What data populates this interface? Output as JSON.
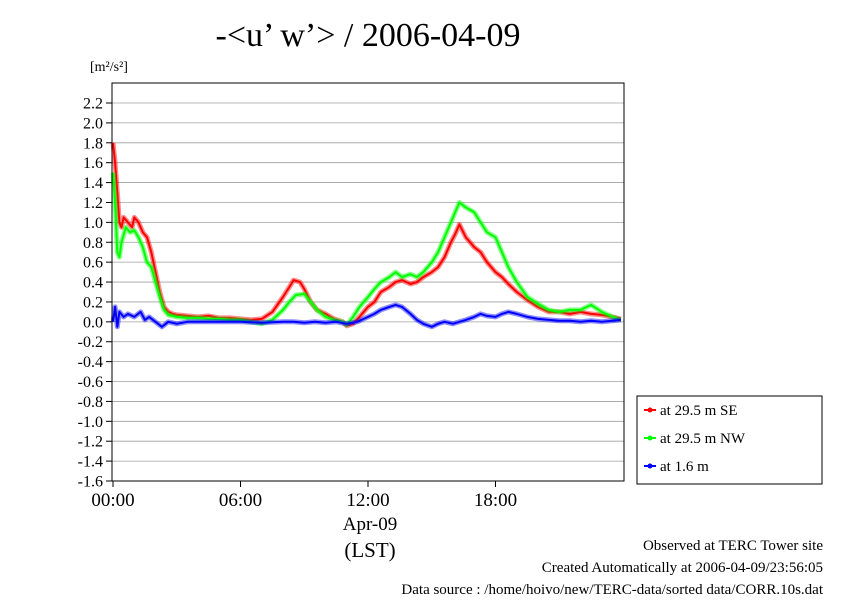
{
  "chart_data": {
    "type": "line",
    "title": "-<u’ w’> / 2006-04-09",
    "ylabel_unit": "[m²/s²]",
    "ylim": [
      -1.6,
      2.3
    ],
    "yticks": [
      2.2,
      2.0,
      1.8,
      1.6,
      1.4,
      1.2,
      1.0,
      0.8,
      0.6,
      0.4,
      0.2,
      0.0,
      -0.2,
      -0.4,
      -0.6,
      -0.8,
      -1.0,
      -1.2,
      -1.4,
      -1.6
    ],
    "ytick_labels": [
      "2.2",
      "2.0",
      "1.8",
      "1.6",
      "1.4",
      "1.2",
      "1.0",
      "0.8",
      "0.6",
      "0.4",
      "0.2",
      "0.0",
      "-0.2",
      "-0.4",
      "-0.6",
      "-0.8",
      "-1.0",
      "-1.2",
      "-1.4",
      "-1.6"
    ],
    "xlim": [
      0,
      24
    ],
    "xticks": [
      0,
      6,
      12,
      18
    ],
    "xtick_labels": [
      "00:00",
      "06:00",
      "12:00",
      "18:00"
    ],
    "x_date_label": "Apr-09",
    "x_unit_label": "(LST)",
    "grid": "horizontal",
    "legend_placement": "right",
    "series": [
      {
        "name": "at 29.5 m SE",
        "color": "#ff0000",
        "x": [
          0.0,
          0.1,
          0.2,
          0.3,
          0.4,
          0.5,
          0.7,
          0.9,
          1.0,
          1.2,
          1.4,
          1.6,
          1.8,
          2.0,
          2.2,
          2.4,
          2.6,
          2.8,
          3.0,
          3.5,
          4.0,
          4.5,
          5.0,
          5.5,
          6.0,
          6.5,
          7.0,
          7.5,
          8.0,
          8.3,
          8.5,
          8.8,
          9.0,
          9.3,
          9.6,
          10.0,
          10.4,
          10.8,
          11.0,
          11.3,
          11.6,
          12.0,
          12.3,
          12.6,
          13.0,
          13.3,
          13.6,
          14.0,
          14.3,
          14.6,
          15.0,
          15.3,
          15.6,
          15.9,
          16.1,
          16.3,
          16.6,
          17.0,
          17.3,
          17.6,
          18.0,
          18.3,
          18.6,
          19.0,
          19.5,
          20.0,
          20.5,
          21.0,
          21.5,
          22.0,
          22.5,
          23.0,
          23.5,
          23.9
        ],
        "values": [
          1.8,
          1.6,
          1.3,
          1.0,
          0.95,
          1.05,
          1.0,
          0.95,
          1.05,
          1.0,
          0.9,
          0.85,
          0.7,
          0.5,
          0.3,
          0.15,
          0.1,
          0.08,
          0.07,
          0.06,
          0.05,
          0.06,
          0.04,
          0.04,
          0.03,
          0.02,
          0.03,
          0.1,
          0.25,
          0.35,
          0.42,
          0.4,
          0.33,
          0.2,
          0.12,
          0.08,
          0.03,
          0.0,
          -0.04,
          -0.02,
          0.05,
          0.15,
          0.2,
          0.3,
          0.35,
          0.4,
          0.42,
          0.38,
          0.4,
          0.45,
          0.5,
          0.55,
          0.65,
          0.8,
          0.88,
          0.98,
          0.85,
          0.75,
          0.7,
          0.6,
          0.5,
          0.45,
          0.38,
          0.3,
          0.22,
          0.15,
          0.1,
          0.1,
          0.08,
          0.1,
          0.08,
          0.07,
          0.05,
          0.03
        ]
      },
      {
        "name": "at 29.5 m NW",
        "color": "#00ff00",
        "x": [
          0.0,
          0.1,
          0.2,
          0.3,
          0.4,
          0.6,
          0.8,
          1.0,
          1.2,
          1.4,
          1.6,
          1.8,
          2.0,
          2.2,
          2.4,
          2.6,
          2.8,
          3.0,
          3.5,
          4.0,
          4.5,
          5.0,
          5.5,
          6.0,
          6.5,
          7.0,
          7.5,
          8.0,
          8.3,
          8.6,
          9.0,
          9.3,
          9.6,
          10.0,
          10.4,
          10.8,
          11.0,
          11.3,
          11.6,
          12.0,
          12.3,
          12.6,
          13.0,
          13.3,
          13.6,
          14.0,
          14.3,
          14.6,
          15.0,
          15.3,
          15.6,
          15.9,
          16.1,
          16.3,
          16.6,
          17.0,
          17.3,
          17.6,
          18.0,
          18.3,
          18.6,
          19.0,
          19.5,
          20.0,
          20.5,
          21.0,
          21.5,
          22.0,
          22.5,
          23.0,
          23.5,
          23.9
        ],
        "values": [
          1.5,
          1.2,
          0.7,
          0.65,
          0.8,
          0.95,
          0.9,
          0.92,
          0.85,
          0.75,
          0.6,
          0.55,
          0.4,
          0.25,
          0.12,
          0.07,
          0.06,
          0.05,
          0.04,
          0.04,
          0.03,
          0.03,
          0.02,
          0.02,
          0.0,
          -0.02,
          0.02,
          0.12,
          0.2,
          0.27,
          0.28,
          0.2,
          0.12,
          0.05,
          0.02,
          0.0,
          -0.03,
          0.05,
          0.15,
          0.25,
          0.33,
          0.4,
          0.45,
          0.5,
          0.45,
          0.48,
          0.45,
          0.5,
          0.6,
          0.7,
          0.85,
          1.0,
          1.1,
          1.2,
          1.15,
          1.1,
          1.0,
          0.9,
          0.85,
          0.7,
          0.55,
          0.4,
          0.25,
          0.18,
          0.12,
          0.1,
          0.12,
          0.12,
          0.17,
          0.1,
          0.05,
          0.02
        ]
      },
      {
        "name": "at 1.6 m",
        "color": "#0000ff",
        "x": [
          0.0,
          0.1,
          0.2,
          0.3,
          0.5,
          0.7,
          1.0,
          1.3,
          1.5,
          1.7,
          2.0,
          2.3,
          2.6,
          3.0,
          3.5,
          4.0,
          5.0,
          6.0,
          7.0,
          8.0,
          8.5,
          9.0,
          9.5,
          10.0,
          10.5,
          11.0,
          11.5,
          12.0,
          12.3,
          12.6,
          13.0,
          13.3,
          13.6,
          14.0,
          14.3,
          14.6,
          15.0,
          15.3,
          15.6,
          16.0,
          16.3,
          16.6,
          17.0,
          17.3,
          17.6,
          18.0,
          18.3,
          18.6,
          19.0,
          19.5,
          20.0,
          20.5,
          21.0,
          21.5,
          22.0,
          22.5,
          23.0,
          23.5,
          23.9
        ],
        "values": [
          0.0,
          0.15,
          -0.05,
          0.1,
          0.05,
          0.08,
          0.05,
          0.1,
          0.02,
          0.05,
          0.0,
          -0.05,
          0.0,
          -0.02,
          0.0,
          0.0,
          0.0,
          0.0,
          -0.01,
          0.0,
          0.0,
          -0.01,
          0.0,
          -0.01,
          0.0,
          -0.02,
          0.0,
          0.05,
          0.08,
          0.12,
          0.15,
          0.17,
          0.15,
          0.08,
          0.02,
          -0.02,
          -0.05,
          -0.02,
          0.0,
          -0.02,
          0.0,
          0.02,
          0.05,
          0.08,
          0.06,
          0.05,
          0.08,
          0.1,
          0.08,
          0.05,
          0.03,
          0.02,
          0.01,
          0.01,
          0.0,
          0.01,
          0.0,
          0.01,
          0.02
        ]
      }
    ]
  },
  "footer": {
    "line1": "Observed at TERC Tower site",
    "line2": "Created Automatically at 2006-04-09/23:56:05",
    "line3": "Data source : /home/hoivo/new/TERC-data/sorted  data/CORR.10s.dat"
  }
}
